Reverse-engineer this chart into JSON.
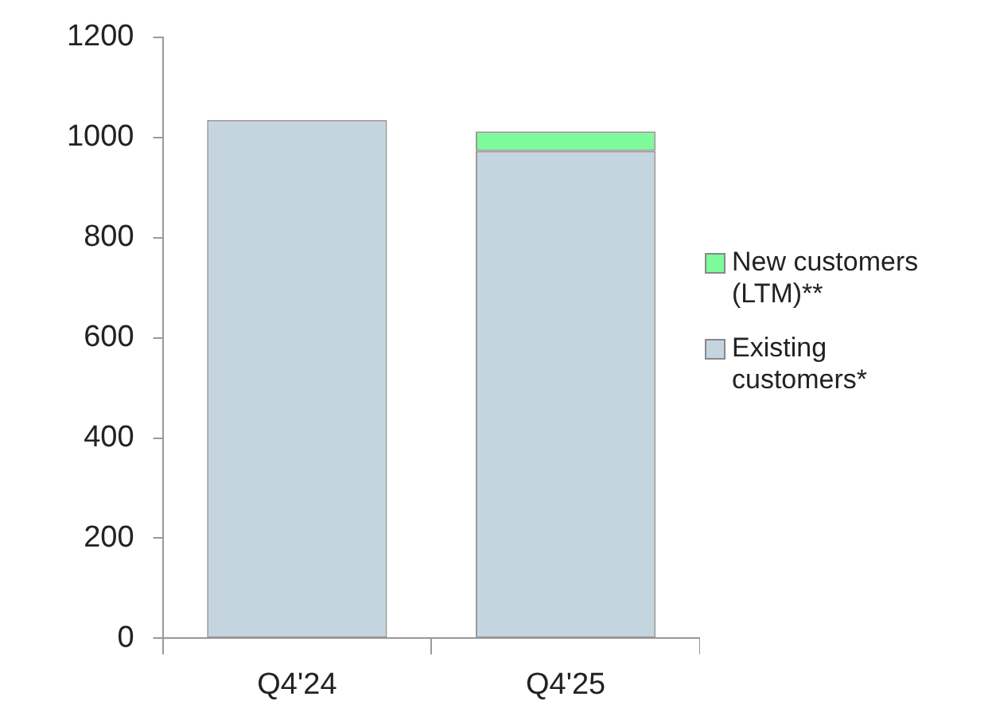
{
  "chart_data": {
    "type": "bar",
    "stacked": true,
    "categories": [
      "Q4'24",
      "Q4'25"
    ],
    "series": [
      {
        "name": "Existing customers*",
        "color": "#c5d5e0",
        "values": [
          1035,
          973
        ]
      },
      {
        "name": "New customers (LTM)**",
        "color": "#7dfa9a",
        "values": [
          null,
          39
        ]
      }
    ],
    "ylim": [
      0,
      1200
    ],
    "yticks": [
      0,
      200,
      400,
      600,
      800,
      1000,
      1200
    ],
    "grid": false,
    "legend": "right"
  }
}
